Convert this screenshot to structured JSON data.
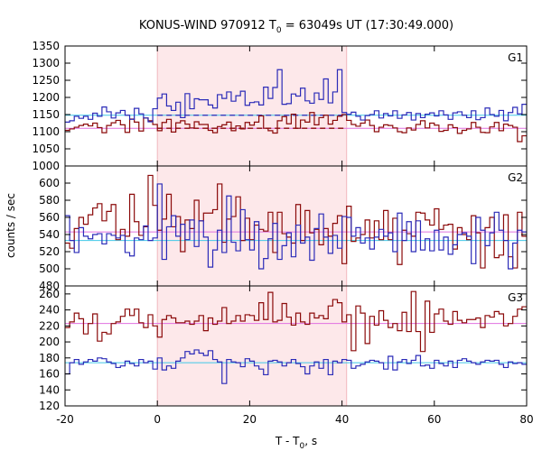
{
  "title": {
    "prefix": "KONUS-WIND 970912 T",
    "sub": "0",
    "suffix": " = 63049s UT (17:30:49.000)"
  },
  "xlabel": {
    "prefix": "T - T",
    "sub": "0",
    "suffix": ", s"
  },
  "ylabel": "counts / sec",
  "colors": {
    "red_series": "#8b0a0a",
    "blue_series": "#2b2bb8",
    "red_level": "#e070e0",
    "blue_level": "#40c8e8",
    "interval_fill": "#fde8ea",
    "interval_edge": "#f1b8be"
  },
  "chart_data": {
    "type": "line",
    "xlim": [
      -20,
      80
    ],
    "x_ticks": [
      -20,
      0,
      20,
      40,
      60,
      80
    ],
    "highlight_interval": [
      0,
      41
    ],
    "bin_width": 1,
    "panels": [
      {
        "label": "G1",
        "ylim": [
          1000,
          1350
        ],
        "y_ticks": [
          1000,
          1050,
          1100,
          1150,
          1200,
          1250,
          1300,
          1350
        ],
        "series": [
          {
            "color": "#8b0a0a",
            "start": -20,
            "values": [
              1104,
              1108,
              1113,
              1118,
              1122,
              1117,
              1125,
              1112,
              1097,
              1118,
              1126,
              1133,
              1120,
              1098,
              1137,
              1128,
              1102,
              1140,
              1132,
              1121,
              1103,
              1127,
              1136,
              1099,
              1126,
              1132,
              1122,
              1111,
              1129,
              1121,
              1121,
              1104,
              1097,
              1115,
              1120,
              1128,
              1103,
              1117,
              1108,
              1127,
              1119,
              1128,
              1146,
              1110,
              1103,
              1096,
              1132,
              1144,
              1123,
              1151,
              1110,
              1134,
              1128,
              1156,
              1120,
              1141,
              1148,
              1122,
              1133,
              1145,
              1150,
              1133,
              1121,
              1116,
              1125,
              1134,
              1118,
              1100,
              1113,
              1120,
              1118,
              1111,
              1100,
              1097,
              1111,
              1105,
              1121,
              1132,
              1111,
              1125,
              1119,
              1101,
              1104,
              1120,
              1112,
              1095,
              1104,
              1108,
              1127,
              1113,
              1098,
              1097,
              1114,
              1127,
              1103,
              1122,
              1118,
              1113,
              1071,
              1088
            ],
            "level": 1110,
            "level_dashed_in_interval": true
          },
          {
            "color": "#2b2bb8",
            "start": -20,
            "values": [
              1128,
              1132,
              1145,
              1139,
              1145,
              1136,
              1154,
              1145,
              1172,
              1158,
              1140,
              1155,
              1162,
              1148,
              1136,
              1168,
              1152,
              1140,
              1129,
              1167,
              1198,
              1210,
              1175,
              1162,
              1186,
              1141,
              1211,
              1167,
              1196,
              1193,
              1193,
              1178,
              1169,
              1208,
              1197,
              1216,
              1189,
              1205,
              1218,
              1177,
              1185,
              1187,
              1178,
              1230,
              1197,
              1229,
              1281,
              1180,
              1182,
              1210,
              1204,
              1227,
              1190,
              1183,
              1213,
              1194,
              1254,
              1184,
              1216,
              1281,
              1156,
              1151,
              1157,
              1145,
              1134,
              1147,
              1150,
              1161,
              1140,
              1153,
              1146,
              1161,
              1139,
              1149,
              1156,
              1134,
              1153,
              1141,
              1151,
              1155,
              1146,
              1161,
              1149,
              1136,
              1155,
              1158,
              1148,
              1141,
              1161,
              1135,
              1141,
              1169,
              1150,
              1145,
              1162,
              1132,
              1156,
              1171,
              1152,
              1180
            ],
            "level": 1148,
            "level_dashed_in_interval": true
          }
        ]
      },
      {
        "label": "G2",
        "ylim": [
          480,
          620
        ],
        "y_ticks": [
          480,
          500,
          520,
          540,
          560,
          580,
          600
        ],
        "series": [
          {
            "color": "#8b0a0a",
            "start": -20,
            "values": [
              530,
              524,
              547,
              560,
              552,
              563,
              571,
              576,
              556,
              567,
              575,
              534,
              546,
              538,
              587,
              555,
              539,
              549,
              609,
              574,
              545,
              558,
              587,
              549,
              561,
              520,
              557,
              547,
              580,
              556,
              565,
              565,
              569,
              599,
              531,
              558,
              561,
              584,
              533,
              559,
              534,
              551,
              546,
              544,
              566,
              519,
              566,
              541,
              537,
              530,
              575,
              533,
              568,
              542,
              546,
              528,
              547,
              538,
              553,
              562,
              506,
              573,
              532,
              536,
              540,
              557,
              536,
              556,
              534,
              568,
              534,
              559,
              505,
              545,
              541,
              538,
              566,
              565,
              557,
              551,
              570,
              546,
              551,
              552,
              523,
              548,
              540,
              534,
              562,
              542,
              501,
              548,
              560,
              513,
              516,
              563,
              514,
              501,
              566,
              538
            ],
            "level": 543
          },
          {
            "color": "#2b2bb8",
            "start": -20,
            "values": [
              562,
              533,
              519,
              548,
              538,
              535,
              540,
              541,
              529,
              541,
              539,
              536,
              539,
              519,
              515,
              536,
              534,
              550,
              533,
              536,
              599,
              511,
              549,
              562,
              538,
              552,
              534,
              557,
              526,
              556,
              537,
              502,
              522,
              545,
              519,
              585,
              531,
              521,
              569,
              534,
              522,
              555,
              500,
              512,
              535,
              553,
              511,
              527,
              542,
              514,
              551,
              530,
              537,
              510,
              547,
              564,
              537,
              518,
              539,
              524,
              561,
              560,
              538,
              548,
              530,
              536,
              523,
              537,
              546,
              538,
              542,
              520,
              565,
              533,
              555,
              520,
              556,
              522,
              535,
              521,
              545,
              522,
              537,
              517,
              528,
              540,
              542,
              538,
              506,
              560,
              545,
              527,
              542,
              566,
              545,
              533,
              500,
              530,
              545,
              543
            ],
            "level": 533
          }
        ]
      },
      {
        "label": "G3",
        "ylim": [
          120,
          270
        ],
        "y_ticks": [
          120,
          140,
          160,
          180,
          200,
          220,
          240,
          260
        ],
        "series": [
          {
            "color": "#8b0a0a",
            "start": -20,
            "values": [
              218,
              225,
              236,
              229,
              210,
              223,
              235,
              201,
              212,
              210,
              223,
              225,
              232,
              241,
              233,
              241,
              224,
              218,
              234,
              220,
              206,
              228,
              233,
              230,
              224,
              224,
              226,
              222,
              226,
              233,
              214,
              230,
              222,
              226,
              243,
              223,
              226,
              233,
              226,
              234,
              233,
              227,
              249,
              228,
              262,
              225,
              227,
              248,
              231,
              221,
              236,
              225,
              222,
              236,
              230,
              233,
              229,
              245,
              253,
              249,
              225,
              234,
              189,
              245,
              236,
              198,
              232,
              221,
              239,
              227,
              218,
              223,
              214,
              237,
              213,
              263,
              213,
              188,
              251,
              212,
              235,
              241,
              226,
              222,
              238,
              227,
              224,
              228,
              228,
              230,
              218,
              233,
              231,
              238,
              235,
              220,
              223,
              232,
              241,
              244
            ],
            "level": 223
          },
          {
            "color": "#2b2bb8",
            "start": -20,
            "values": [
              160,
              174,
              178,
              172,
              175,
              178,
              176,
              180,
              179,
              175,
              173,
              168,
              170,
              176,
              173,
              170,
              178,
              174,
              176,
              166,
              180,
              165,
              170,
              167,
              176,
              180,
              188,
              185,
              190,
              186,
              183,
              189,
              178,
              175,
              148,
              178,
              175,
              174,
              169,
              179,
              176,
              170,
              166,
              159,
              176,
              177,
              175,
              170,
              174,
              178,
              173,
              169,
              160,
              170,
              175,
              167,
              178,
              159,
              176,
              174,
              178,
              177,
              167,
              170,
              172,
              175,
              177,
              176,
              174,
              166,
              182,
              165,
              175,
              178,
              173,
              177,
              183,
              170,
              171,
              167,
              177,
              173,
              170,
              176,
              168,
              177,
              179,
              176,
              174,
              172,
              175,
              177,
              176,
              177,
              172,
              168,
              175,
              173,
              174,
              172
            ],
            "level": 174
          }
        ]
      }
    ]
  }
}
